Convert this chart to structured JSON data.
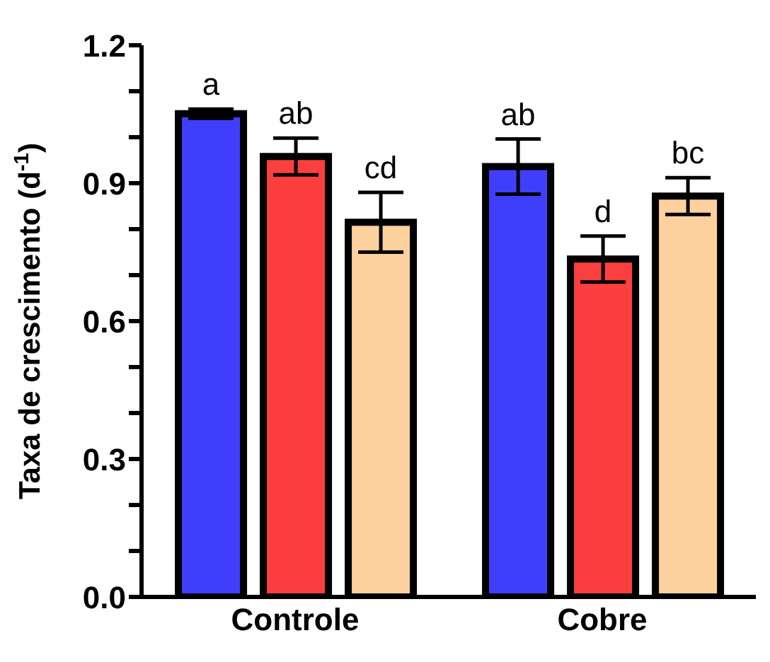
{
  "chart_data": {
    "type": "bar",
    "ylabel": "Taxa de crescimento (d$^{-1}$)",
    "categories": [
      "Controle",
      "Cobre"
    ],
    "series": [
      {
        "color": "#3f3ffb",
        "values": [
          1.051,
          0.936
        ],
        "errors": [
          0.01,
          0.06
        ],
        "value_labels": [
          "a",
          "ab"
        ]
      },
      {
        "color": "#fb3f3f",
        "values": [
          0.958,
          0.735
        ],
        "errors": [
          0.04,
          0.05
        ],
        "value_labels": [
          "ab",
          "d"
        ]
      },
      {
        "color": "#fdd19d",
        "values": [
          0.815,
          0.872
        ],
        "errors": [
          0.065,
          0.04
        ],
        "value_labels": [
          "cd",
          "bc"
        ]
      }
    ],
    "ylim": [
      0,
      1.2
    ],
    "yticks": [
      {
        "value": 0,
        "label": "0.0"
      },
      {
        "value": 0.1,
        "label": null
      },
      {
        "value": 0.2,
        "label": null
      },
      0.3,
      {
        "value": 0.4,
        "label": null
      },
      {
        "value": 0.5,
        "label": null
      },
      0.6,
      {
        "value": 0.7,
        "label": null
      },
      {
        "value": 0.8,
        "label": null
      },
      0.9,
      {
        "value": 1.0,
        "label": null
      },
      {
        "value": 1.1,
        "label": null
      },
      1.2
    ],
    "grid": false,
    "legend": false
  }
}
